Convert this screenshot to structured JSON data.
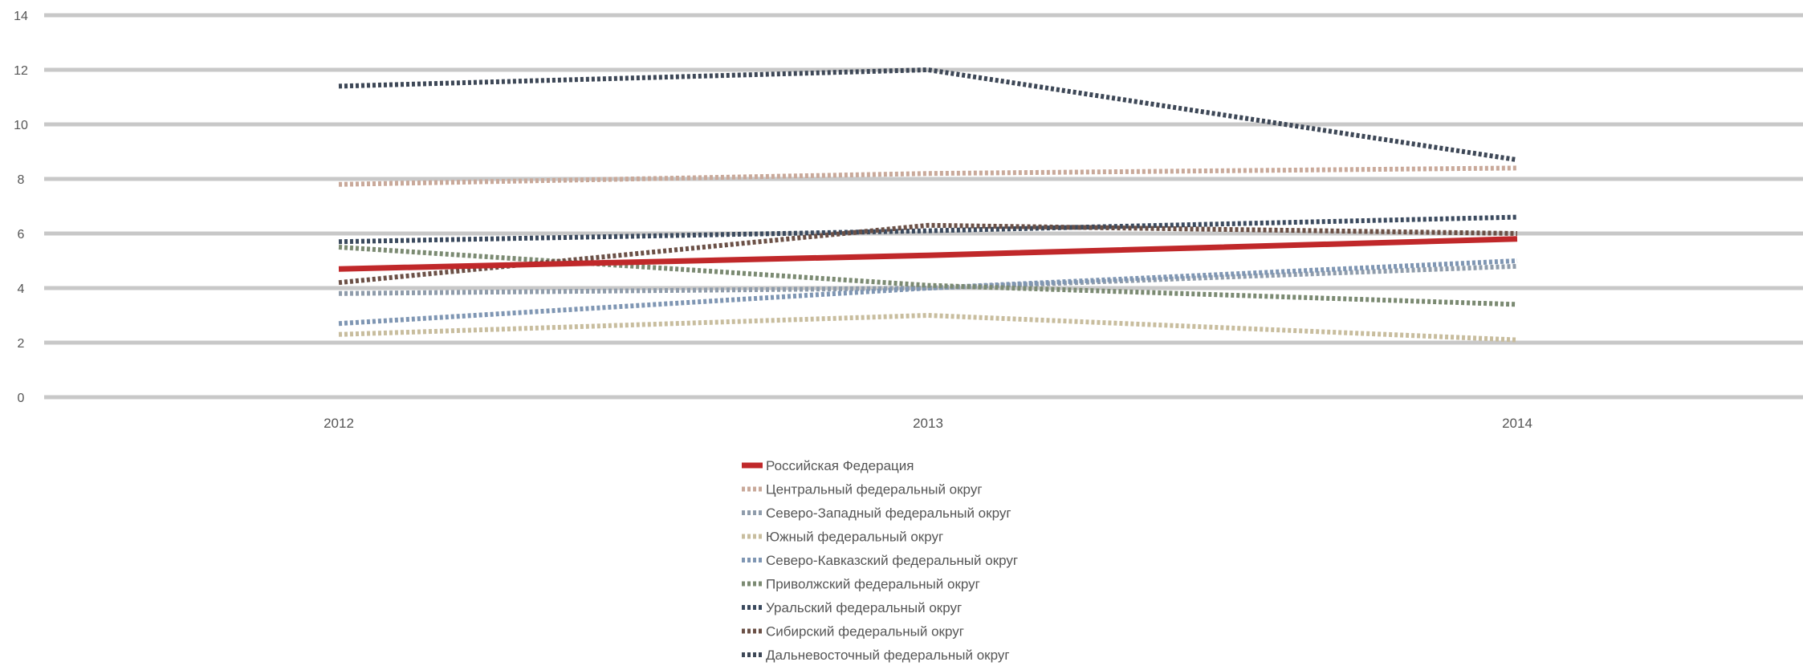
{
  "chart_data": {
    "type": "line",
    "categories": [
      "2012",
      "2013",
      "2014"
    ],
    "ylim": [
      0,
      14
    ],
    "yticks": [
      "0",
      "2",
      "4",
      "6",
      "8",
      "10",
      "12",
      "14"
    ],
    "grid": true,
    "legend_position": "bottom",
    "series": [
      {
        "name": "Российская Федерация",
        "values": [
          4.7,
          5.2,
          5.8
        ],
        "color": "#c0282a",
        "dashed": false
      },
      {
        "name": "Центральный федеральный округ",
        "values": [
          7.8,
          8.2,
          8.4
        ],
        "color": "#c9a99a",
        "dashed": true
      },
      {
        "name": "Северо-Западный федеральный округ",
        "values": [
          3.8,
          4.0,
          4.8
        ],
        "color": "#8f9cab",
        "dashed": true
      },
      {
        "name": "Южный федеральный округ",
        "values": [
          2.3,
          3.0,
          2.1
        ],
        "color": "#c8bd9e",
        "dashed": true
      },
      {
        "name": "Северо-Кавказский федеральный округ",
        "values": [
          2.7,
          4.0,
          5.0
        ],
        "color": "#7f96b3",
        "dashed": true
      },
      {
        "name": "Приволжский федеральный округ",
        "values": [
          5.5,
          4.1,
          3.4
        ],
        "color": "#7b8a72",
        "dashed": true
      },
      {
        "name": "Уральский федеральный округ",
        "values": [
          5.7,
          6.1,
          6.6
        ],
        "color": "#3b4a5e",
        "dashed": true
      },
      {
        "name": "Сибирский федеральный округ",
        "values": [
          4.2,
          6.3,
          6.0
        ],
        "color": "#6b5046",
        "dashed": true
      },
      {
        "name": "Дальневосточный федеральный округ",
        "values": [
          11.4,
          12.0,
          8.7
        ],
        "color": "#3d4756",
        "dashed": true
      }
    ]
  }
}
